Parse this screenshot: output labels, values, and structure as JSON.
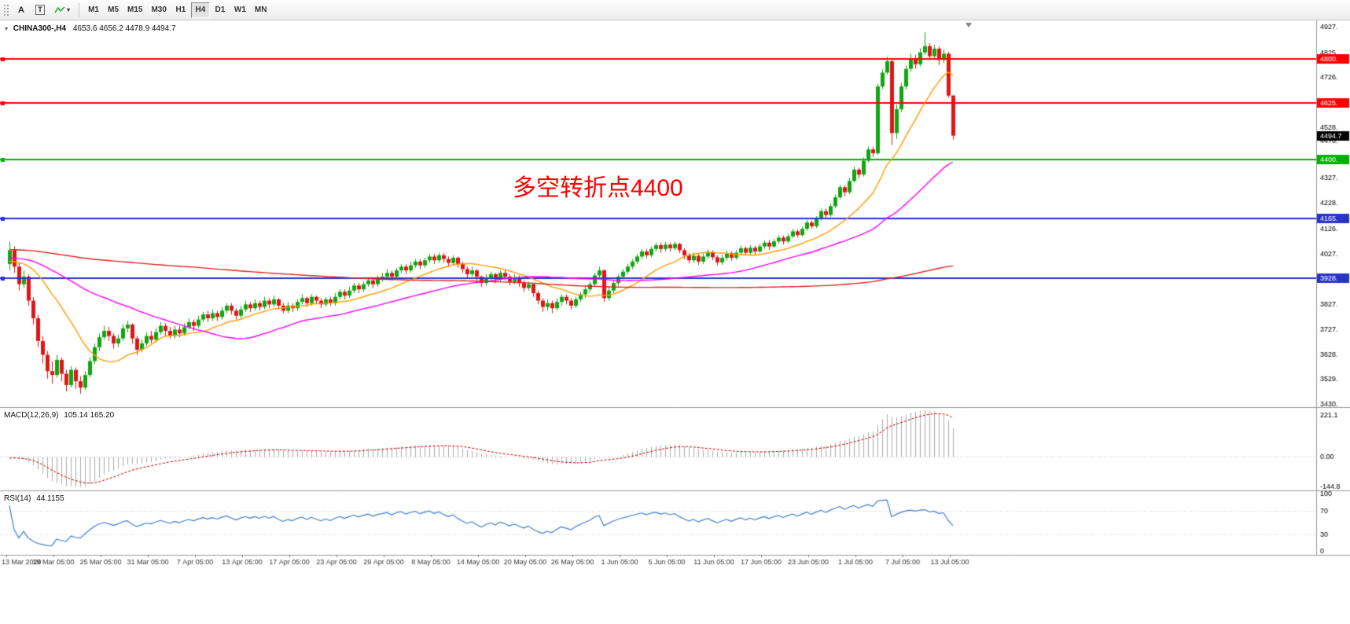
{
  "toolbar": {
    "arrow_tool": "A",
    "text_tool": "T",
    "timeframes": [
      "M1",
      "M5",
      "M15",
      "M30",
      "H1",
      "H4",
      "D1",
      "W1",
      "MN"
    ],
    "active_timeframe": "H4"
  },
  "chart": {
    "symbol_label": "CHINA300-,H4",
    "ohlc_label": "4653.6 4656.2 4478.9 4494.7",
    "annotation_text": "多空转折点4400",
    "annotation_color": "#FF0000"
  },
  "chart_data": {
    "type": "candlestick",
    "symbol": "CHINA300-",
    "timeframe": "H4",
    "ohlc_current": {
      "open": 4653.6,
      "high": 4656.2,
      "low": 4478.9,
      "close": 4494.7
    },
    "price_axis": {
      "min": 3430,
      "max": 4927,
      "labels": [
        {
          "t": "4927.",
          "v": 4927
        },
        {
          "t": "4825.",
          "v": 4825
        },
        {
          "t": "4726.",
          "v": 4726
        },
        {
          "t": "4528.",
          "v": 4528
        },
        {
          "t": "4476.",
          "v": 4476
        },
        {
          "t": "4327.",
          "v": 4327
        },
        {
          "t": "4228.",
          "v": 4228
        },
        {
          "t": "4126.",
          "v": 4126
        },
        {
          "t": "4027.",
          "v": 4027
        },
        {
          "t": "3827.",
          "v": 3827
        },
        {
          "t": "3727.",
          "v": 3727
        },
        {
          "t": "3628.",
          "v": 3628
        },
        {
          "t": "3529.",
          "v": 3529
        },
        {
          "t": "3430.",
          "v": 3430
        }
      ]
    },
    "hlines": [
      {
        "price": 4800,
        "label": "4800.",
        "color": "#FF0000",
        "width": 2
      },
      {
        "price": 4625,
        "label": "4625.",
        "color": "#FF0000",
        "width": 2
      },
      {
        "price": 4400,
        "label": "4400.",
        "color": "#00B200",
        "width": 2
      },
      {
        "price": 4165,
        "label": "4165.",
        "color": "#2833C8",
        "width": 2
      },
      {
        "price": 3928,
        "label": "3928.",
        "color": "#2833C8",
        "width": 2
      }
    ],
    "current_price": {
      "value": 4494.7,
      "label": "4494.7",
      "color": "#000000"
    },
    "time_labels": [
      "13 Mar 2020",
      "19 Mar 05:00",
      "25 Mar 05:00",
      "31 Mar 05:00",
      "7 Apr 05:00",
      "13 Apr 05:00",
      "17 Apr 05:00",
      "23 Apr 05:00",
      "29 Apr 05:00",
      "8 May 05:00",
      "14 May 05:00",
      "20 May 05:00",
      "26 May 05:00",
      "1 Jun 05:00",
      "5 Jun 05:00",
      "11 Jun 05:00",
      "17 Jun 05:00",
      "23 Jun 05:00",
      "1 Jul 05:00",
      "7 Jul 05:00",
      "13 Jul 05:00"
    ],
    "moving_averages": [
      {
        "period": 16,
        "color": "#FF9C00"
      },
      {
        "period": 45,
        "color": "#FF00FF"
      },
      {
        "period": 200,
        "color": "#E02020"
      }
    ],
    "indicator_warmup": {
      "count": 160,
      "start": 4085,
      "end": 4000,
      "amp": 18
    },
    "indicators": {
      "macd": {
        "name": "MACD(12,26,9)",
        "values": "105.14 165.20",
        "fast": 12,
        "slow": 26,
        "signal": 9,
        "scale_max": 221.1,
        "scale_min": -144.8,
        "axis_labels": [
          "221.1",
          "0.00",
          "-144.8"
        ],
        "histogram_color": "#ABABAB",
        "signal_color": "#C80000"
      },
      "rsi": {
        "name": "RSI(14)",
        "values": "44.1155",
        "period": 14,
        "levels": [
          30,
          70
        ],
        "axis_labels": [
          "100",
          "70",
          "30",
          "0"
        ],
        "line_color": "#3F7FD0"
      }
    },
    "colors": {
      "bull": "#11A611",
      "bear": "#DF1616",
      "background": "#FFFFFF",
      "axis_text": "#000000"
    },
    "candles": [
      [
        3985,
        4075,
        3960,
        4040
      ],
      [
        4040,
        4055,
        3950,
        3975
      ],
      [
        3975,
        3990,
        3880,
        3905
      ],
      [
        3905,
        3960,
        3890,
        3935
      ],
      [
        3935,
        3945,
        3820,
        3840
      ],
      [
        3840,
        3855,
        3745,
        3770
      ],
      [
        3770,
        3785,
        3655,
        3680
      ],
      [
        3680,
        3700,
        3590,
        3625
      ],
      [
        3625,
        3640,
        3530,
        3560
      ],
      [
        3560,
        3600,
        3510,
        3545
      ],
      [
        3545,
        3625,
        3535,
        3605
      ],
      [
        3605,
        3615,
        3520,
        3550
      ],
      [
        3550,
        3565,
        3480,
        3505
      ],
      [
        3505,
        3580,
        3495,
        3565
      ],
      [
        3565,
        3575,
        3490,
        3520
      ],
      [
        3520,
        3540,
        3470,
        3495
      ],
      [
        3495,
        3560,
        3485,
        3545
      ],
      [
        3545,
        3615,
        3535,
        3600
      ],
      [
        3600,
        3670,
        3590,
        3655
      ],
      [
        3655,
        3710,
        3640,
        3695
      ],
      [
        3695,
        3740,
        3685,
        3720
      ],
      [
        3720,
        3735,
        3680,
        3700
      ],
      [
        3700,
        3710,
        3650,
        3670
      ],
      [
        3670,
        3705,
        3655,
        3690
      ],
      [
        3690,
        3745,
        3680,
        3730
      ],
      [
        3730,
        3760,
        3715,
        3745
      ],
      [
        3745,
        3750,
        3670,
        3690
      ],
      [
        3690,
        3700,
        3625,
        3645
      ],
      [
        3645,
        3685,
        3635,
        3670
      ],
      [
        3670,
        3715,
        3660,
        3700
      ],
      [
        3700,
        3720,
        3670,
        3685
      ],
      [
        3685,
        3730,
        3675,
        3715
      ],
      [
        3715,
        3755,
        3705,
        3740
      ],
      [
        3740,
        3750,
        3700,
        3720
      ],
      [
        3720,
        3735,
        3690,
        3700
      ],
      [
        3700,
        3740,
        3690,
        3725
      ],
      [
        3725,
        3740,
        3695,
        3710
      ],
      [
        3710,
        3750,
        3700,
        3735
      ],
      [
        3735,
        3770,
        3725,
        3755
      ],
      [
        3755,
        3765,
        3720,
        3740
      ],
      [
        3740,
        3780,
        3730,
        3765
      ],
      [
        3765,
        3795,
        3755,
        3785
      ],
      [
        3785,
        3800,
        3755,
        3770
      ],
      [
        3770,
        3805,
        3760,
        3790
      ],
      [
        3790,
        3800,
        3760,
        3775
      ],
      [
        3775,
        3815,
        3765,
        3800
      ],
      [
        3800,
        3830,
        3790,
        3820
      ],
      [
        3820,
        3830,
        3785,
        3800
      ],
      [
        3800,
        3810,
        3765,
        3780
      ],
      [
        3780,
        3820,
        3770,
        3805
      ],
      [
        3805,
        3840,
        3795,
        3825
      ],
      [
        3825,
        3835,
        3795,
        3810
      ],
      [
        3810,
        3845,
        3800,
        3830
      ],
      [
        3830,
        3840,
        3800,
        3815
      ],
      [
        3815,
        3855,
        3805,
        3840
      ],
      [
        3840,
        3850,
        3810,
        3825
      ],
      [
        3825,
        3860,
        3815,
        3845
      ],
      [
        3845,
        3850,
        3805,
        3820
      ],
      [
        3820,
        3830,
        3790,
        3800
      ],
      [
        3800,
        3835,
        3790,
        3820
      ],
      [
        3820,
        3830,
        3795,
        3810
      ],
      [
        3810,
        3845,
        3800,
        3835
      ],
      [
        3835,
        3865,
        3825,
        3850
      ],
      [
        3850,
        3855,
        3815,
        3830
      ],
      [
        3830,
        3865,
        3820,
        3855
      ],
      [
        3855,
        3860,
        3825,
        3840
      ],
      [
        3840,
        3850,
        3810,
        3825
      ],
      [
        3825,
        3855,
        3815,
        3845
      ],
      [
        3845,
        3855,
        3820,
        3830
      ],
      [
        3830,
        3870,
        3820,
        3855
      ],
      [
        3855,
        3885,
        3845,
        3875
      ],
      [
        3875,
        3885,
        3845,
        3860
      ],
      [
        3860,
        3895,
        3850,
        3880
      ],
      [
        3880,
        3910,
        3870,
        3900
      ],
      [
        3900,
        3910,
        3870,
        3885
      ],
      [
        3885,
        3915,
        3875,
        3905
      ],
      [
        3905,
        3930,
        3895,
        3920
      ],
      [
        3920,
        3930,
        3890,
        3905
      ],
      [
        3905,
        3940,
        3895,
        3925
      ],
      [
        3925,
        3950,
        3915,
        3935
      ],
      [
        3935,
        3965,
        3925,
        3950
      ],
      [
        3950,
        3960,
        3920,
        3935
      ],
      [
        3935,
        3970,
        3925,
        3960
      ],
      [
        3960,
        3985,
        3950,
        3975
      ],
      [
        3975,
        3985,
        3945,
        3960
      ],
      [
        3960,
        3995,
        3950,
        3980
      ],
      [
        3980,
        4005,
        3970,
        3995
      ],
      [
        3995,
        4005,
        3965,
        3980
      ],
      [
        3980,
        4010,
        3970,
        4000
      ],
      [
        4000,
        4025,
        3990,
        4015
      ],
      [
        4015,
        4025,
        3985,
        4000
      ],
      [
        4000,
        4030,
        3990,
        4020
      ],
      [
        4020,
        4030,
        3990,
        4005
      ],
      [
        4005,
        4015,
        3975,
        3990
      ],
      [
        3990,
        4020,
        3980,
        4010
      ],
      [
        4010,
        4015,
        3970,
        3985
      ],
      [
        3985,
        3995,
        3950,
        3965
      ],
      [
        3965,
        3975,
        3930,
        3945
      ],
      [
        3945,
        3975,
        3935,
        3960
      ],
      [
        3960,
        3965,
        3920,
        3935
      ],
      [
        3935,
        3940,
        3895,
        3910
      ],
      [
        3910,
        3945,
        3900,
        3930
      ],
      [
        3930,
        3955,
        3915,
        3945
      ],
      [
        3945,
        3950,
        3910,
        3925
      ],
      [
        3925,
        3960,
        3915,
        3950
      ],
      [
        3950,
        3960,
        3920,
        3935
      ],
      [
        3935,
        3945,
        3900,
        3915
      ],
      [
        3915,
        3945,
        3905,
        3930
      ],
      [
        3930,
        3940,
        3895,
        3910
      ],
      [
        3910,
        3920,
        3875,
        3890
      ],
      [
        3890,
        3915,
        3880,
        3905
      ],
      [
        3905,
        3910,
        3855,
        3870
      ],
      [
        3870,
        3880,
        3825,
        3840
      ],
      [
        3840,
        3850,
        3795,
        3815
      ],
      [
        3815,
        3845,
        3800,
        3830
      ],
      [
        3830,
        3840,
        3790,
        3810
      ],
      [
        3810,
        3850,
        3800,
        3835
      ],
      [
        3835,
        3865,
        3820,
        3855
      ],
      [
        3855,
        3865,
        3825,
        3840
      ],
      [
        3840,
        3850,
        3805,
        3820
      ],
      [
        3820,
        3855,
        3810,
        3845
      ],
      [
        3845,
        3875,
        3835,
        3865
      ],
      [
        3865,
        3895,
        3850,
        3885
      ],
      [
        3885,
        3915,
        3875,
        3905
      ],
      [
        3905,
        3950,
        3895,
        3940
      ],
      [
        3940,
        3975,
        3930,
        3960
      ],
      [
        3960,
        3965,
        3835,
        3850
      ],
      [
        3850,
        3895,
        3840,
        3880
      ],
      [
        3880,
        3920,
        3870,
        3910
      ],
      [
        3910,
        3945,
        3900,
        3935
      ],
      [
        3935,
        3965,
        3925,
        3955
      ],
      [
        3955,
        3985,
        3945,
        3975
      ],
      [
        3975,
        4005,
        3965,
        3995
      ],
      [
        3995,
        4025,
        3985,
        4015
      ],
      [
        4015,
        4045,
        4005,
        4035
      ],
      [
        4035,
        4045,
        4008,
        4020
      ],
      [
        4020,
        4055,
        4012,
        4045
      ],
      [
        4045,
        4070,
        4035,
        4060
      ],
      [
        4060,
        4070,
        4030,
        4045
      ],
      [
        4045,
        4072,
        4035,
        4062
      ],
      [
        4062,
        4070,
        4035,
        4048
      ],
      [
        4048,
        4075,
        4040,
        4065
      ],
      [
        4065,
        4070,
        4028,
        4040
      ],
      [
        4040,
        4048,
        4005,
        4020
      ],
      [
        4020,
        4028,
        3988,
        4000
      ],
      [
        4000,
        4030,
        3990,
        4018
      ],
      [
        4018,
        4025,
        3982,
        3995
      ],
      [
        3995,
        4028,
        3985,
        4015
      ],
      [
        4015,
        4042,
        4005,
        4032
      ],
      [
        4032,
        4040,
        4000,
        4012
      ],
      [
        4012,
        4020,
        3980,
        3992
      ],
      [
        3992,
        4022,
        3982,
        4010
      ],
      [
        4010,
        4038,
        4000,
        4028
      ],
      [
        4028,
        4035,
        3998,
        4010
      ],
      [
        4010,
        4040,
        4002,
        4030
      ],
      [
        4030,
        4058,
        4020,
        4048
      ],
      [
        4048,
        4055,
        4018,
        4030
      ],
      [
        4030,
        4060,
        4022,
        4050
      ],
      [
        4050,
        4058,
        4022,
        4035
      ],
      [
        4035,
        4065,
        4028,
        4055
      ],
      [
        4055,
        4080,
        4045,
        4070
      ],
      [
        4070,
        4080,
        4042,
        4055
      ],
      [
        4055,
        4085,
        4048,
        4075
      ],
      [
        4075,
        4100,
        4065,
        4090
      ],
      [
        4090,
        4098,
        4062,
        4075
      ],
      [
        4075,
        4105,
        4068,
        4095
      ],
      [
        4095,
        4125,
        4088,
        4115
      ],
      [
        4115,
        4122,
        4090,
        4100
      ],
      [
        4100,
        4135,
        4095,
        4125
      ],
      [
        4125,
        4160,
        4118,
        4150
      ],
      [
        4150,
        4158,
        4125,
        4135
      ],
      [
        4135,
        4175,
        4128,
        4165
      ],
      [
        4165,
        4205,
        4158,
        4195
      ],
      [
        4195,
        4205,
        4168,
        4180
      ],
      [
        4180,
        4225,
        4172,
        4215
      ],
      [
        4215,
        4262,
        4208,
        4250
      ],
      [
        4250,
        4300,
        4242,
        4290
      ],
      [
        4290,
        4298,
        4255,
        4270
      ],
      [
        4270,
        4328,
        4262,
        4315
      ],
      [
        4315,
        4372,
        4308,
        4360
      ],
      [
        4360,
        4368,
        4325,
        4340
      ],
      [
        4340,
        4408,
        4332,
        4395
      ],
      [
        4395,
        4452,
        4388,
        4440
      ],
      [
        4440,
        4450,
        4410,
        4425
      ],
      [
        4425,
        4700,
        4418,
        4690
      ],
      [
        4690,
        4758,
        4680,
        4745
      ],
      [
        4745,
        4808,
        4738,
        4790
      ],
      [
        4790,
        4800,
        4458,
        4505
      ],
      [
        4505,
        4618,
        4482,
        4600
      ],
      [
        4600,
        4705,
        4588,
        4690
      ],
      [
        4690,
        4775,
        4678,
        4760
      ],
      [
        4760,
        4820,
        4748,
        4800
      ],
      [
        4800,
        4815,
        4760,
        4778
      ],
      [
        4778,
        4842,
        4770,
        4825
      ],
      [
        4825,
        4905,
        4815,
        4850
      ],
      [
        4850,
        4862,
        4795,
        4810
      ],
      [
        4810,
        4855,
        4800,
        4840
      ],
      [
        4840,
        4848,
        4775,
        4795
      ],
      [
        4795,
        4838,
        4782,
        4820
      ],
      [
        4820,
        4828,
        4645,
        4653.6
      ],
      [
        4653.6,
        4656.2,
        4478.9,
        4494.7
      ]
    ]
  }
}
